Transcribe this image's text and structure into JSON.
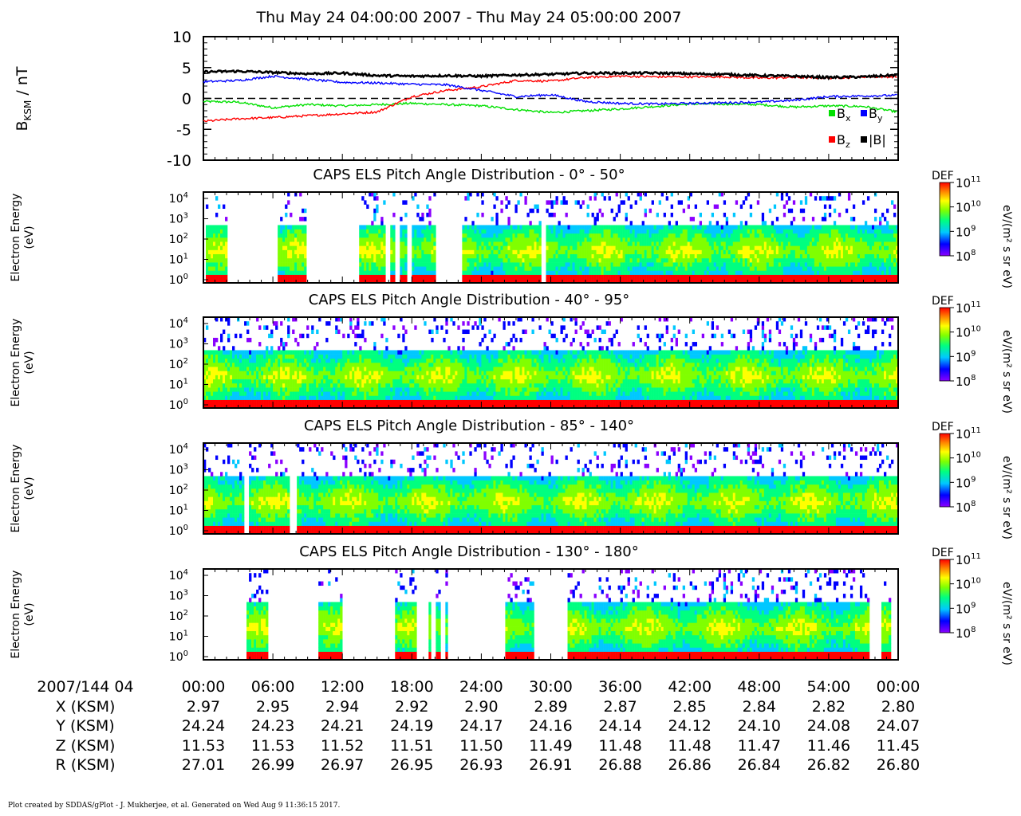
{
  "header": {
    "title": "Thu May 24 04:00:00 2007 - Thu May 24 05:00:00 2007"
  },
  "colors": {
    "bx": "#00e000",
    "by": "#0000ff",
    "bz": "#ff0000",
    "bmag": "#000000",
    "colormap": [
      "#8a00ff",
      "#0000ff",
      "#00c8ff",
      "#00ff80",
      "#80ff00",
      "#ffff00",
      "#ff8000",
      "#ff0000"
    ]
  },
  "chart_data": [
    {
      "type": "line",
      "ylabel_main": "B",
      "ylabel_sub": "KSM",
      "ylabel_unit": " / nT",
      "ylim": [
        -10,
        10
      ],
      "yticks": [
        "10",
        "5",
        "0",
        "-5",
        "-10"
      ],
      "reference_line": 0,
      "legend": [
        {
          "name": "B",
          "sub": "x"
        },
        {
          "name": "B",
          "sub": "y"
        },
        {
          "name": "B",
          "sub": "z"
        },
        {
          "name": "|B|",
          "sub": ""
        }
      ],
      "x_minutes": [
        0,
        3,
        6,
        9,
        12,
        15,
        18,
        21,
        24,
        27,
        30,
        33,
        36,
        39,
        42,
        45,
        48,
        51,
        54,
        57,
        60
      ],
      "series": [
        {
          "key": "bx",
          "values": [
            -0.5,
            -0.6,
            -1.5,
            -1.0,
            -1.2,
            -1.0,
            -0.8,
            -1.0,
            -1.2,
            -1.8,
            -2.3,
            -2.0,
            -1.7,
            -1.3,
            -0.9,
            -0.9,
            -1.0,
            -1.4,
            -1.2,
            -1.3,
            -2.2
          ]
        },
        {
          "key": "by",
          "values": [
            2.7,
            2.9,
            3.6,
            3.1,
            2.6,
            2.5,
            2.3,
            2.2,
            1.3,
            0.3,
            0.6,
            -0.5,
            -0.8,
            -0.9,
            -0.8,
            -0.7,
            -0.6,
            -0.3,
            0.3,
            0.4,
            0.5
          ]
        },
        {
          "key": "bz",
          "values": [
            -3.7,
            -3.3,
            -3.1,
            -2.8,
            -2.5,
            -2.2,
            0.3,
            1.3,
            1.9,
            2.9,
            2.8,
            3.4,
            3.6,
            3.5,
            3.5,
            3.5,
            3.3,
            3.4,
            3.3,
            3.5,
            3.5
          ]
        },
        {
          "key": "bmag",
          "values": [
            4.3,
            4.4,
            4.2,
            4.0,
            4.1,
            3.7,
            3.6,
            3.7,
            3.6,
            3.8,
            3.9,
            4.1,
            4.1,
            4.1,
            4.0,
            3.9,
            3.7,
            3.6,
            3.4,
            3.5,
            3.8
          ]
        }
      ]
    },
    {
      "type": "heatmap",
      "title": "CAPS ELS Pitch Angle Distribution - 0° - 50°",
      "ylabel": [
        "Electron Energy",
        "(eV)"
      ],
      "colorbar": {
        "label": "DEF",
        "unit": "eV/(m² s sr eV)",
        "ticks": [
          "11",
          "10",
          "9",
          "8"
        ],
        "range_log10": [
          8,
          11
        ]
      },
      "energy_ticks": [
        "4",
        "3",
        "2",
        "1",
        "0"
      ],
      "coverage_minutes": [
        [
          0.2,
          2.1
        ],
        [
          6.5,
          8.8
        ],
        [
          13.4,
          15.8
        ],
        [
          16.2,
          16.6
        ],
        [
          17.0,
          17.5
        ],
        [
          17.9,
          20.0
        ],
        [
          22.4,
          29.2
        ],
        [
          29.6,
          60
        ]
      ]
    },
    {
      "type": "heatmap",
      "title": "CAPS ELS Pitch Angle Distribution - 40° - 95°",
      "ylabel": [
        "Electron Energy",
        "(eV)"
      ],
      "colorbar": {
        "label": "DEF",
        "unit": "eV/(m² s sr eV)",
        "ticks": [
          "11",
          "10",
          "9",
          "8"
        ],
        "range_log10": [
          8,
          11
        ]
      },
      "energy_ticks": [
        "4",
        "3",
        "2",
        "1",
        "0"
      ],
      "coverage_minutes": [
        [
          0,
          60
        ]
      ]
    },
    {
      "type": "heatmap",
      "title": "CAPS ELS Pitch Angle Distribution - 85° - 140°",
      "ylabel": [
        "Electron Energy",
        "(eV)"
      ],
      "colorbar": {
        "label": "DEF",
        "unit": "eV/(m² s sr eV)",
        "ticks": [
          "11",
          "10",
          "9",
          "8"
        ],
        "range_log10": [
          8,
          11
        ]
      },
      "energy_ticks": [
        "4",
        "3",
        "2",
        "1",
        "0"
      ],
      "coverage_minutes": [
        [
          0,
          3.5
        ],
        [
          4.0,
          7.5
        ],
        [
          8.0,
          60
        ]
      ]
    },
    {
      "type": "heatmap",
      "title": "CAPS ELS Pitch Angle Distribution - 130° - 180°",
      "ylabel": [
        "Electron Energy",
        "(eV)"
      ],
      "colorbar": {
        "label": "DEF",
        "unit": "eV/(m² s sr eV)",
        "ticks": [
          "11",
          "10",
          "9",
          "8"
        ],
        "range_log10": [
          8,
          11
        ]
      },
      "energy_ticks": [
        "4",
        "3",
        "2",
        "1",
        "0"
      ],
      "coverage_minutes": [
        [
          3.7,
          5.5
        ],
        [
          10.0,
          12.0
        ],
        [
          16.5,
          18.5
        ],
        [
          19.4,
          19.6
        ],
        [
          20.0,
          20.5
        ],
        [
          20.8,
          21.1
        ],
        [
          26.0,
          28.5
        ],
        [
          31.5,
          57.5
        ],
        [
          58.5,
          59.3
        ]
      ]
    }
  ],
  "ephemeris": {
    "row_labels": [
      "2007/144 04",
      "X (KSM)",
      "Y (KSM)",
      "Z (KSM)",
      "R (KSM)"
    ],
    "time": [
      "00:00",
      "06:00",
      "12:00",
      "18:00",
      "24:00",
      "30:00",
      "36:00",
      "42:00",
      "48:00",
      "54:00",
      "00:00"
    ],
    "x": [
      "2.97",
      "2.95",
      "2.94",
      "2.92",
      "2.90",
      "2.89",
      "2.87",
      "2.85",
      "2.84",
      "2.82",
      "2.80"
    ],
    "y": [
      "24.24",
      "24.23",
      "24.21",
      "24.19",
      "24.17",
      "24.16",
      "24.14",
      "24.12",
      "24.10",
      "24.08",
      "24.07"
    ],
    "z": [
      "11.53",
      "11.53",
      "11.52",
      "11.51",
      "11.50",
      "11.49",
      "11.48",
      "11.48",
      "11.47",
      "11.46",
      "11.45"
    ],
    "r": [
      "27.01",
      "26.99",
      "26.97",
      "26.95",
      "26.93",
      "26.91",
      "26.88",
      "26.86",
      "26.84",
      "26.82",
      "26.80"
    ]
  },
  "footer": {
    "text": "Plot created by SDDAS/gPlot - J. Mukherjee, et al.  Generated on Wed Aug 9 11:36:15 2017."
  }
}
